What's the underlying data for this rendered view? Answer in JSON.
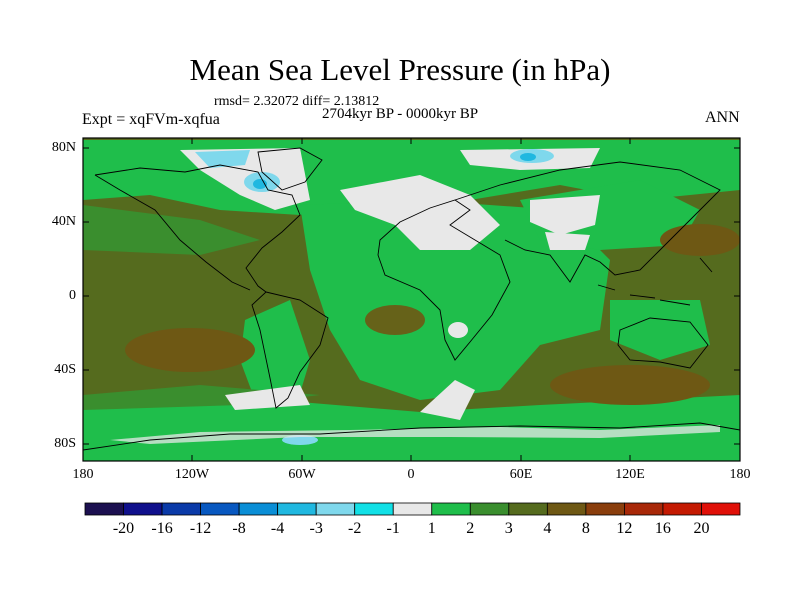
{
  "title": "Mean Sea Level Pressure (in hPa)",
  "stats": "rmsd= 2.32072 diff= 2.13812",
  "period": "2704kyr BP - 0000kyr BP",
  "experiment": "Expt = xqFVm-xqfua",
  "season": "ANN",
  "map": {
    "lat_labels": [
      "80N",
      "40N",
      "0",
      "40S",
      "80S"
    ],
    "lon_labels": [
      "180",
      "120W",
      "60W",
      "0",
      "60E",
      "120E",
      "180"
    ]
  },
  "colorbar": {
    "labels": [
      "-20",
      "-16",
      "-12",
      "-8",
      "-4",
      "-3",
      "-2",
      "-1",
      "1",
      "2",
      "3",
      "4",
      "8",
      "12",
      "16",
      "20"
    ],
    "colors": [
      "#1c1050",
      "#10108c",
      "#0a3aa8",
      "#0858c0",
      "#0a8ed6",
      "#20b8e0",
      "#7fd8ec",
      "#12e0e6",
      "#e8e8e8",
      "#1fbe4b",
      "#3a8e2e",
      "#556b1e",
      "#6e5814",
      "#8a3e0c",
      "#a82808",
      "#c41a02",
      "#e01008"
    ]
  },
  "colors": {
    "green": "#1fbe4b",
    "olive": "#556b1e",
    "dark_green": "#3a8e2e",
    "brown": "#6e5814",
    "grey": "#e8e8e8",
    "light_blue": "#7fd8ec",
    "mid_blue": "#20b8e0"
  }
}
